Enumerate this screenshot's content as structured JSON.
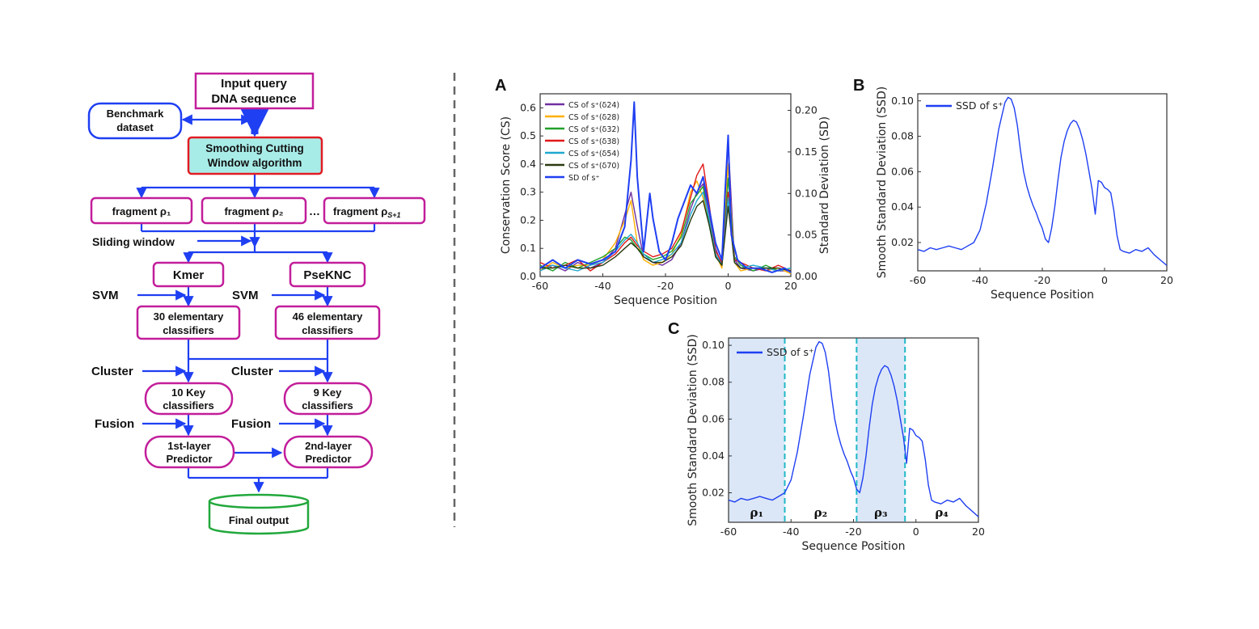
{
  "colors": {
    "magenta": "#c21e9a",
    "blue_line": "#1f3ff2",
    "green_box": "#22a83c",
    "red_box": "#e31b23",
    "cyan_fill": "#a8ece8",
    "region_fill": "#dbe7f7",
    "dash_cyan": "#1fb8c8",
    "divider": "#666666"
  },
  "flowchart": {
    "input": [
      "Input query",
      "DNA sequence"
    ],
    "benchmark": [
      "Benchmark",
      "dataset"
    ],
    "scw": [
      "Smoothing Cutting",
      "Window algorithm"
    ],
    "frag1": "fragment ρ₁",
    "frag2": "fragment ρ₂",
    "ellipsis": "…",
    "frag3": "fragment ρ_{S+1}",
    "frag3_main": "fragment ρ",
    "frag3_sub": "S+1",
    "sliding": "Sliding window",
    "kmer": "Kmer",
    "pseknc": "PseKNC",
    "svm_left": "SVM",
    "svm_right": "SVM",
    "elem30": [
      "30 elementary",
      "classifiers"
    ],
    "elem46": [
      "46 elementary",
      "classifiers"
    ],
    "cluster_left": "Cluster",
    "cluster_right": "Cluster",
    "key10": [
      "10 Key",
      "classifiers"
    ],
    "key9": [
      "9 Key",
      "classifiers"
    ],
    "fusion_left": "Fusion",
    "fusion_right": "Fusion",
    "pred1": [
      "1st-layer",
      "Predictor"
    ],
    "pred2": [
      "2nd-layer",
      "Predictor"
    ],
    "final": "Final output"
  },
  "chart_data": [
    {
      "panel": "A",
      "type": "line",
      "xlabel": "Sequence Position",
      "ylabel_left": "Conservation Score (CS)",
      "ylabel_right": "Standard Deviation (SD)",
      "xlim": [
        -60,
        20
      ],
      "ylim_left": [
        0,
        0.65
      ],
      "ylim_right": [
        0,
        0.22
      ],
      "xticks": [
        "-60",
        "-40",
        "-20",
        "0",
        "20"
      ],
      "yticks_left": [
        "0.0",
        "0.1",
        "0.2",
        "0.3",
        "0.4",
        "0.5",
        "0.6"
      ],
      "yticks_right": [
        "0.00",
        "0.05",
        "0.10",
        "0.15",
        "0.20"
      ],
      "legend": [
        {
          "name": "CS of s⁺(δ24)",
          "color": "#7030a0"
        },
        {
          "name": "CS of s⁺(δ28)",
          "color": "#ffb000"
        },
        {
          "name": "CS of s⁺(δ32)",
          "color": "#22a02c"
        },
        {
          "name": "CS of s⁺(δ38)",
          "color": "#e01818"
        },
        {
          "name": "CS of s⁺(δ54)",
          "color": "#20a8d0"
        },
        {
          "name": "CS of s⁺(δ70)",
          "color": "#2a3a10"
        },
        {
          "name": "SD of s⁺",
          "color": "#1f3ff2"
        }
      ],
      "series": [
        {
          "name": "CS of s⁺(δ24)",
          "color": "#7030a0",
          "x": [
            -60,
            -56,
            -52,
            -48,
            -44,
            -40,
            -36,
            -33,
            -31,
            -29,
            -27,
            -24,
            -21,
            -18,
            -15,
            -12,
            -10,
            -8,
            -6,
            -4,
            -2,
            0,
            2,
            4,
            8,
            12,
            16,
            20
          ],
          "y": [
            0.03,
            0.04,
            0.02,
            0.05,
            0.03,
            0.05,
            0.1,
            0.22,
            0.3,
            0.18,
            0.07,
            0.05,
            0.04,
            0.06,
            0.12,
            0.24,
            0.3,
            0.33,
            0.22,
            0.1,
            0.04,
            0.48,
            0.06,
            0.03,
            0.02,
            0.03,
            0.02,
            0.02
          ]
        },
        {
          "name": "CS of s⁺(δ28)",
          "color": "#ffb000",
          "x": [
            -60,
            -56,
            -52,
            -48,
            -44,
            -40,
            -36,
            -33,
            -31,
            -29,
            -27,
            -24,
            -21,
            -18,
            -15,
            -12,
            -10,
            -8,
            -6,
            -4,
            -2,
            0,
            2,
            4,
            8,
            12,
            16,
            20
          ],
          "y": [
            0.02,
            0.05,
            0.03,
            0.04,
            0.04,
            0.06,
            0.12,
            0.2,
            0.27,
            0.12,
            0.06,
            0.04,
            0.05,
            0.08,
            0.15,
            0.3,
            0.34,
            0.28,
            0.2,
            0.08,
            0.03,
            0.4,
            0.05,
            0.02,
            0.03,
            0.02,
            0.03,
            0.01
          ]
        },
        {
          "name": "CS of s⁺(δ32)",
          "color": "#22a02c",
          "x": [
            -60,
            -56,
            -52,
            -48,
            -44,
            -40,
            -36,
            -33,
            -31,
            -29,
            -27,
            -24,
            -21,
            -18,
            -15,
            -12,
            -10,
            -8,
            -6,
            -4,
            -2,
            0,
            2,
            4,
            8,
            12,
            16,
            20
          ],
          "y": [
            0.04,
            0.02,
            0.05,
            0.03,
            0.05,
            0.07,
            0.1,
            0.14,
            0.13,
            0.1,
            0.08,
            0.06,
            0.07,
            0.09,
            0.14,
            0.26,
            0.29,
            0.32,
            0.18,
            0.07,
            0.04,
            0.35,
            0.07,
            0.04,
            0.02,
            0.04,
            0.02,
            0.03
          ]
        },
        {
          "name": "CS of s⁺(δ38)",
          "color": "#e01818",
          "x": [
            -60,
            -56,
            -52,
            -48,
            -44,
            -40,
            -36,
            -33,
            -31,
            -29,
            -27,
            -24,
            -21,
            -18,
            -15,
            -12,
            -10,
            -8,
            -6,
            -4,
            -2,
            0,
            2,
            4,
            8,
            12,
            16,
            20
          ],
          "y": [
            0.05,
            0.03,
            0.04,
            0.06,
            0.02,
            0.05,
            0.08,
            0.12,
            0.14,
            0.11,
            0.09,
            0.07,
            0.08,
            0.1,
            0.16,
            0.28,
            0.36,
            0.4,
            0.25,
            0.09,
            0.05,
            0.3,
            0.06,
            0.05,
            0.03,
            0.02,
            0.04,
            0.02
          ]
        },
        {
          "name": "CS of s⁺(δ54)",
          "color": "#20a8d0",
          "x": [
            -60,
            -56,
            -52,
            -48,
            -44,
            -40,
            -36,
            -33,
            -31,
            -29,
            -27,
            -24,
            -21,
            -18,
            -15,
            -12,
            -10,
            -8,
            -6,
            -4,
            -2,
            0,
            2,
            4,
            8,
            12,
            16,
            20
          ],
          "y": [
            0.02,
            0.04,
            0.03,
            0.02,
            0.04,
            0.05,
            0.09,
            0.13,
            0.15,
            0.12,
            0.08,
            0.05,
            0.06,
            0.08,
            0.12,
            0.22,
            0.27,
            0.3,
            0.2,
            0.08,
            0.04,
            0.28,
            0.05,
            0.03,
            0.04,
            0.03,
            0.02,
            0.03
          ]
        },
        {
          "name": "CS of s⁺(δ70)",
          "color": "#2a3a10",
          "x": [
            -60,
            -56,
            -52,
            -48,
            -44,
            -40,
            -36,
            -33,
            -31,
            -29,
            -27,
            -24,
            -21,
            -18,
            -15,
            -12,
            -10,
            -8,
            -6,
            -4,
            -2,
            0,
            2,
            4,
            8,
            12,
            16,
            20
          ],
          "y": [
            0.03,
            0.03,
            0.04,
            0.03,
            0.03,
            0.04,
            0.07,
            0.1,
            0.12,
            0.1,
            0.07,
            0.05,
            0.05,
            0.07,
            0.11,
            0.2,
            0.25,
            0.27,
            0.18,
            0.07,
            0.04,
            0.25,
            0.05,
            0.03,
            0.03,
            0.03,
            0.03,
            0.02
          ]
        },
        {
          "name": "SD of s⁺",
          "color": "#1f3ff2",
          "x": [
            -60,
            -56,
            -52,
            -48,
            -44,
            -40,
            -36,
            -33,
            -31,
            -30,
            -29,
            -27,
            -25,
            -24,
            -22,
            -20,
            -18,
            -16,
            -14,
            -12,
            -10,
            -8,
            -6,
            -4,
            -2,
            -1,
            0,
            1,
            3,
            6,
            10,
            14,
            18,
            20
          ],
          "y": [
            0.01,
            0.02,
            0.01,
            0.02,
            0.015,
            0.02,
            0.03,
            0.06,
            0.14,
            0.21,
            0.12,
            0.03,
            0.1,
            0.07,
            0.03,
            0.02,
            0.04,
            0.07,
            0.09,
            0.11,
            0.1,
            0.12,
            0.08,
            0.04,
            0.02,
            0.1,
            0.17,
            0.05,
            0.02,
            0.01,
            0.01,
            0.005,
            0.01,
            0.005
          ]
        }
      ]
    },
    {
      "panel": "B",
      "type": "line",
      "xlabel": "Sequence Position",
      "ylabel": "Smooth Standard Deviation (SSD)",
      "xlim": [
        -60,
        20
      ],
      "ylim": [
        0.004,
        0.104
      ],
      "xticks": [
        "-60",
        "-40",
        "-20",
        "0",
        "20"
      ],
      "yticks": [
        "0.02",
        "0.04",
        "0.06",
        "0.08",
        "0.10"
      ],
      "legend": [
        {
          "name": "SSD of s⁺",
          "color": "#1f3ff2"
        }
      ],
      "series": [
        {
          "name": "SSD of s⁺",
          "color": "#1f3ff2",
          "x": [
            -60,
            -58,
            -56,
            -54,
            -52,
            -50,
            -48,
            -46,
            -44,
            -42,
            -40,
            -38,
            -36,
            -34,
            -32,
            -31,
            -30,
            -29,
            -28,
            -27,
            -26,
            -25,
            -24,
            -23,
            -22,
            -21,
            -20,
            -19,
            -18,
            -17,
            -16,
            -15,
            -14,
            -13,
            -12,
            -11,
            -10,
            -9,
            -8,
            -7,
            -6,
            -5,
            -4,
            -3,
            -2,
            -1,
            0,
            1,
            2,
            3,
            4,
            5,
            6,
            8,
            10,
            12,
            14,
            16,
            18,
            20
          ],
          "y": [
            0.016,
            0.015,
            0.017,
            0.016,
            0.017,
            0.018,
            0.017,
            0.016,
            0.018,
            0.02,
            0.027,
            0.042,
            0.062,
            0.084,
            0.099,
            0.102,
            0.101,
            0.096,
            0.086,
            0.072,
            0.06,
            0.052,
            0.046,
            0.041,
            0.037,
            0.032,
            0.028,
            0.022,
            0.02,
            0.028,
            0.04,
            0.055,
            0.068,
            0.077,
            0.083,
            0.087,
            0.089,
            0.088,
            0.084,
            0.078,
            0.07,
            0.06,
            0.05,
            0.036,
            0.055,
            0.054,
            0.051,
            0.05,
            0.048,
            0.038,
            0.024,
            0.016,
            0.015,
            0.014,
            0.016,
            0.015,
            0.017,
            0.013,
            0.01,
            0.007
          ]
        }
      ]
    },
    {
      "panel": "C",
      "type": "line",
      "xlabel": "Sequence Position",
      "ylabel": "Smooth Standard Deviation (SSD)",
      "xlim": [
        -60,
        20
      ],
      "ylim": [
        0.004,
        0.104
      ],
      "xticks": [
        "-60",
        "-40",
        "-20",
        "0",
        "20"
      ],
      "yticks": [
        "0.02",
        "0.04",
        "0.06",
        "0.08",
        "0.10"
      ],
      "legend": [
        {
          "name": "SSD of s⁺",
          "color": "#1f3ff2"
        }
      ],
      "regions": [
        {
          "label": "ρ₁",
          "from": -60,
          "to": -42,
          "shaded": true
        },
        {
          "label": "ρ₂",
          "from": -42,
          "to": -19,
          "shaded": false
        },
        {
          "label": "ρ₃",
          "from": -19,
          "to": -3.5,
          "shaded": true
        },
        {
          "label": "ρ₄",
          "from": -3.5,
          "to": 20,
          "shaded": false
        }
      ],
      "cut_positions": [
        -42,
        -19,
        -3.5
      ],
      "series": [
        {
          "name": "SSD of s⁺",
          "color": "#1f3ff2",
          "x": [
            -60,
            -58,
            -56,
            -54,
            -52,
            -50,
            -48,
            -46,
            -44,
            -42,
            -40,
            -38,
            -36,
            -34,
            -32,
            -31,
            -30,
            -29,
            -28,
            -27,
            -26,
            -25,
            -24,
            -23,
            -22,
            -21,
            -20,
            -19,
            -18,
            -17,
            -16,
            -15,
            -14,
            -13,
            -12,
            -11,
            -10,
            -9,
            -8,
            -7,
            -6,
            -5,
            -4,
            -3,
            -2,
            -1,
            0,
            1,
            2,
            3,
            4,
            5,
            6,
            8,
            10,
            12,
            14,
            16,
            18,
            20
          ],
          "y": [
            0.016,
            0.015,
            0.017,
            0.016,
            0.017,
            0.018,
            0.017,
            0.016,
            0.018,
            0.02,
            0.027,
            0.042,
            0.062,
            0.084,
            0.099,
            0.102,
            0.101,
            0.096,
            0.086,
            0.072,
            0.06,
            0.052,
            0.046,
            0.041,
            0.037,
            0.032,
            0.028,
            0.022,
            0.02,
            0.028,
            0.04,
            0.055,
            0.068,
            0.077,
            0.083,
            0.087,
            0.089,
            0.088,
            0.084,
            0.078,
            0.07,
            0.06,
            0.05,
            0.036,
            0.055,
            0.054,
            0.051,
            0.05,
            0.048,
            0.038,
            0.024,
            0.016,
            0.015,
            0.014,
            0.016,
            0.015,
            0.017,
            0.013,
            0.01,
            0.007
          ]
        }
      ]
    }
  ]
}
